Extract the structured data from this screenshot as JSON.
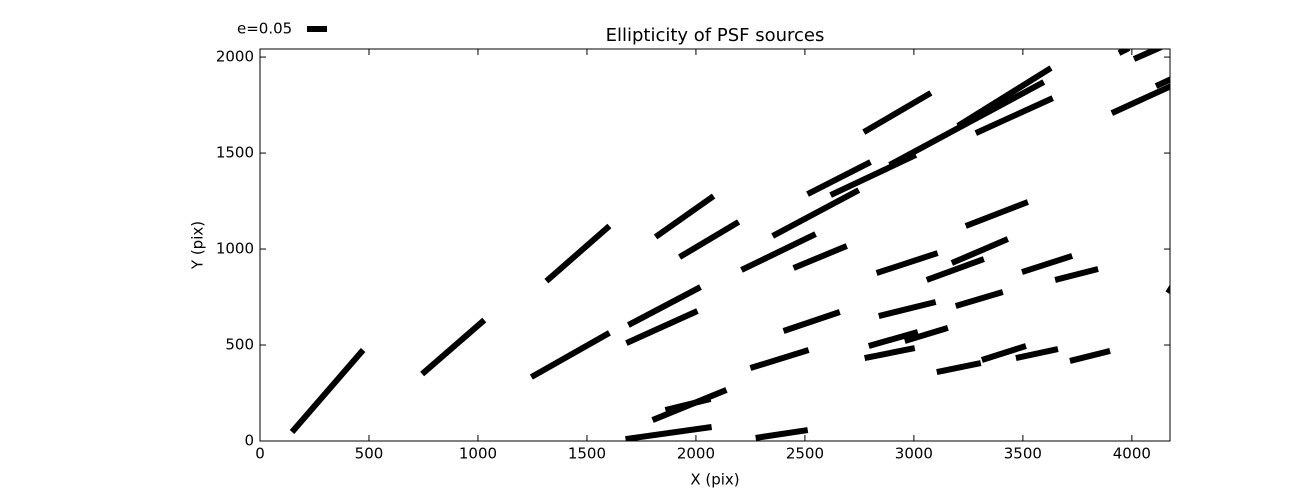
{
  "chart_data": {
    "type": "whisker",
    "title": "Ellipticity of PSF sources",
    "xlabel": "X (pix)",
    "ylabel": "Y (pix)",
    "key_label": "e=0.05",
    "color": "#000000",
    "xlim": [
      0,
      4175
    ],
    "ylim": [
      0,
      2042
    ],
    "xticks": [
      0,
      500,
      1000,
      1500,
      2000,
      2500,
      3000,
      3500,
      4000
    ],
    "yticks": [
      0,
      500,
      1000,
      1500,
      2000
    ],
    "segments": {
      "x1": [
        147,
        744,
        1314,
        1245,
        1690,
        1681,
        1815,
        1925,
        2209,
        2352,
        2448,
        2512,
        2770,
        2618,
        2889,
        3202,
        3284,
        3238,
        3174,
        3059,
        2829,
        3496,
        3648,
        3192,
        2839,
        2402,
        2793,
        2958,
        2774,
        2250,
        1801,
        1860,
        1677,
        2274,
        3105,
        3312,
        3468,
        3716,
        3908,
        3941,
        4010,
        4111,
        4166
      ],
      "y1": [
        47,
        349,
        833,
        333,
        604,
        510,
        1063,
        958,
        891,
        1068,
        901,
        1286,
        1609,
        1281,
        1438,
        1641,
        1604,
        1120,
        927,
        839,
        875,
        880,
        839,
        703,
        651,
        573,
        495,
        521,
        432,
        380,
        109,
        161,
        10,
        16,
        359,
        422,
        432,
        417,
        1708,
        2021,
        1990,
        1849,
        771
      ],
      "x2": [
        473,
        1029,
        1603,
        1603,
        2021,
        2007,
        2081,
        2196,
        2549,
        2747,
        2692,
        2801,
        3078,
        3009,
        3596,
        3629,
        3637,
        3523,
        3431,
        3321,
        3109,
        3726,
        3845,
        3408,
        3100,
        2660,
        3018,
        3156,
        3004,
        2517,
        2140,
        2067,
        2072,
        2513,
        3307,
        3514,
        3661,
        3900,
        4180,
        3987,
        4134,
        4180,
        4189
      ],
      "y2": [
        474,
        630,
        1120,
        563,
        802,
        677,
        1276,
        1141,
        1078,
        1307,
        1016,
        1453,
        1813,
        1490,
        1870,
        1943,
        1786,
        1245,
        1052,
        948,
        979,
        964,
        896,
        776,
        724,
        672,
        568,
        589,
        484,
        474,
        266,
        219,
        73,
        57,
        406,
        495,
        479,
        469,
        1849,
        2047,
        2052,
        1885,
        812
      ]
    }
  }
}
